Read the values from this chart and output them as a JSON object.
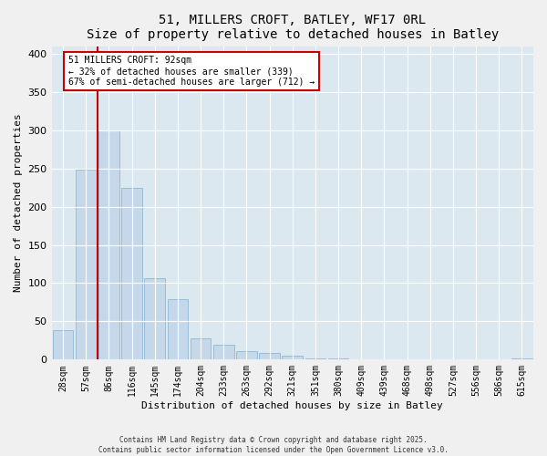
{
  "title": "51, MILLERS CROFT, BATLEY, WF17 0RL",
  "subtitle": "Size of property relative to detached houses in Batley",
  "xlabel": "Distribution of detached houses by size in Batley",
  "ylabel": "Number of detached properties",
  "bar_labels": [
    "28sqm",
    "57sqm",
    "86sqm",
    "116sqm",
    "145sqm",
    "174sqm",
    "204sqm",
    "233sqm",
    "263sqm",
    "292sqm",
    "321sqm",
    "351sqm",
    "380sqm",
    "409sqm",
    "439sqm",
    "468sqm",
    "498sqm",
    "527sqm",
    "556sqm",
    "586sqm",
    "615sqm"
  ],
  "bar_values": [
    38,
    248,
    300,
    225,
    106,
    79,
    28,
    19,
    11,
    9,
    5,
    1,
    1,
    0,
    0,
    0,
    0,
    0,
    0,
    0,
    2
  ],
  "bar_color": "#c5d8ea",
  "bar_edge_color": "#8fb8d4",
  "vline_color": "#cc0000",
  "annotation_title": "51 MILLERS CROFT: 92sqm",
  "annotation_line1": "← 32% of detached houses are smaller (339)",
  "annotation_line2": "67% of semi-detached houses are larger (712) →",
  "annotation_box_edgecolor": "#cc0000",
  "ylim": [
    0,
    410
  ],
  "yticks": [
    0,
    50,
    100,
    150,
    200,
    250,
    300,
    350,
    400
  ],
  "footer1": "Contains HM Land Registry data © Crown copyright and database right 2025.",
  "footer2": "Contains public sector information licensed under the Open Government Licence v3.0.",
  "bg_color": "#f0f0f0",
  "plot_bg_color": "#dce8f0"
}
